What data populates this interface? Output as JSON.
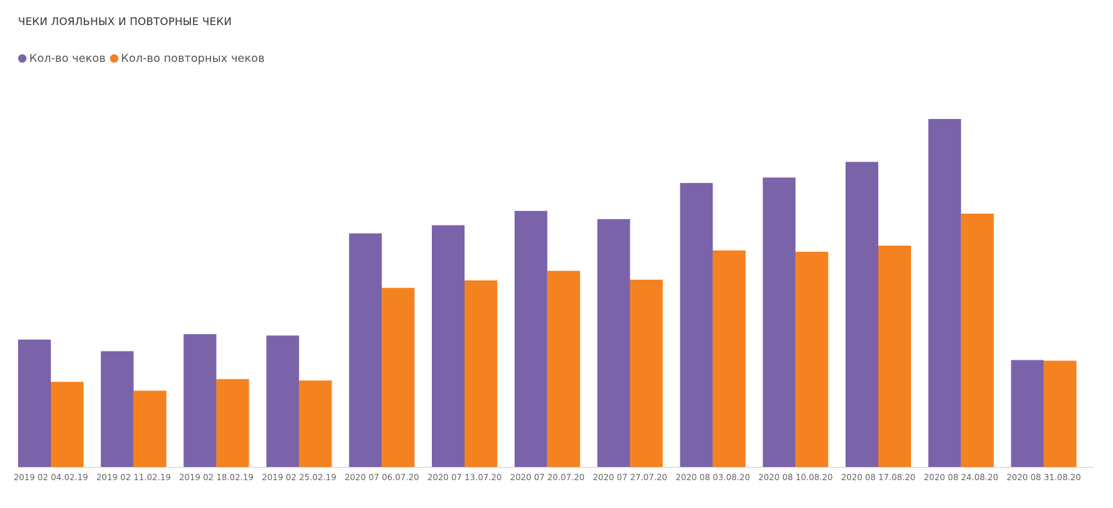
{
  "colors": {
    "series1": "#7B63AA",
    "series2": "#F58220",
    "text": "#333333",
    "legend_text": "#555555",
    "tick_text": "#666666",
    "axis": "#d0d0d0"
  },
  "chart_data": {
    "type": "bar",
    "title": "ЧЕКИ ЛОЯЛЬНЫХ И ПОВТОРНЫЕ ЧЕКИ",
    "legend_position": "top-left",
    "grid": false,
    "categories": [
      "2019 02 04.02.19",
      "2019 02 11.02.19",
      "2019 02 18.02.19",
      "2019 02 25.02.19",
      "2020 07 06.07.20",
      "2020 07 13.07.20",
      "2020 07 20.07.20",
      "2020 07 27.07.20",
      "2020 08 03.08.20",
      "2020 08 10.08.20",
      "2020 08 17.08.20",
      "2020 08 24.08.20",
      "2020 08 31.08.20"
    ],
    "series": [
      {
        "name": "Кол-во чеков",
        "color": "#7B63AA",
        "values": [
          187,
          170,
          195,
          193,
          343,
          355,
          376,
          364,
          417,
          425,
          448,
          511,
          157
        ]
      },
      {
        "name": "Кол-во повторных чеков",
        "color": "#F58220",
        "values": [
          125,
          112,
          129,
          127,
          263,
          274,
          288,
          275,
          318,
          316,
          325,
          372,
          156
        ]
      }
    ],
    "ylim": [
      0,
      530
    ]
  }
}
